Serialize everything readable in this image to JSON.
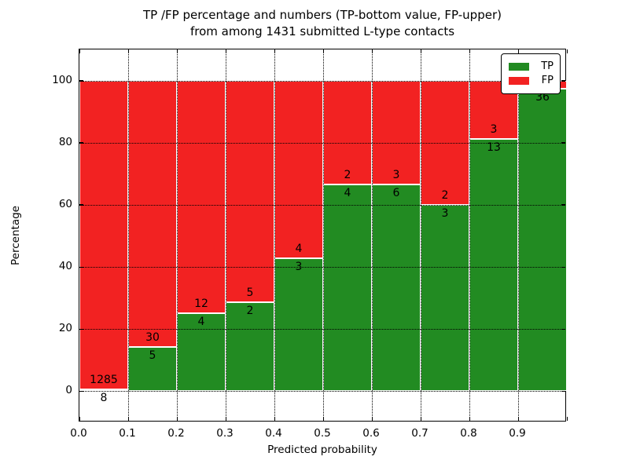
{
  "title": {
    "line1": "TP /FP percentage and numbers (TP-bottom value, FP-upper)",
    "line2": "from among 1431 submitted L-type contacts"
  },
  "chart_data": {
    "type": "bar",
    "stacked": true,
    "orientation": "vertical",
    "title": "TP /FP percentage and numbers (TP-bottom value, FP-upper) from among 1431 submitted L-type contacts",
    "xlabel": "Predicted probability",
    "ylabel": "Percentage",
    "xlim": [
      0.0,
      1.0
    ],
    "ylim": [
      -10,
      110
    ],
    "bin_width": 0.1,
    "grid": "dotted",
    "xtick_labels": [
      "0.0",
      "0.1",
      "0.2",
      "0.3",
      "0.4",
      "0.5",
      "0.6",
      "0.7",
      "0.8",
      "0.9"
    ],
    "ytick_values": [
      0,
      20,
      40,
      60,
      80,
      100
    ],
    "unit": "percent of bin stacked to 100",
    "series": [
      {
        "name": "TP",
        "color": "#228b22",
        "values": [
          8,
          5,
          4,
          2,
          3,
          4,
          6,
          3,
          13,
          36
        ]
      },
      {
        "name": "FP",
        "color": "#f22222",
        "values": [
          1285,
          30,
          12,
          5,
          4,
          2,
          3,
          2,
          3,
          1
        ]
      }
    ],
    "bars": [
      {
        "bin": "0.0-0.1",
        "tp": 8,
        "fp": 1285,
        "tp_label": "8",
        "fp_label": "1285"
      },
      {
        "bin": "0.1-0.2",
        "tp": 5,
        "fp": 30,
        "tp_label": "5",
        "fp_label": "30"
      },
      {
        "bin": "0.2-0.3",
        "tp": 4,
        "fp": 12,
        "tp_label": "4",
        "fp_label": "12"
      },
      {
        "bin": "0.3-0.4",
        "tp": 2,
        "fp": 5,
        "tp_label": "2",
        "fp_label": "5"
      },
      {
        "bin": "0.4-0.5",
        "tp": 3,
        "fp": 4,
        "tp_label": "3",
        "fp_label": "4"
      },
      {
        "bin": "0.5-0.6",
        "tp": 4,
        "fp": 2,
        "tp_label": "4",
        "fp_label": "2"
      },
      {
        "bin": "0.6-0.7",
        "tp": 6,
        "fp": 3,
        "tp_label": "6",
        "fp_label": "3"
      },
      {
        "bin": "0.7-0.8",
        "tp": 3,
        "fp": 2,
        "tp_label": "3",
        "fp_label": "2"
      },
      {
        "bin": "0.8-0.9",
        "tp": 13,
        "fp": 3,
        "tp_label": "13",
        "fp_label": "3"
      },
      {
        "bin": "0.9-1.0",
        "tp": 36,
        "fp": 1,
        "tp_label": "36",
        "fp_label": ""
      }
    ],
    "legend": {
      "position": "upper right",
      "entries": [
        {
          "label": "TP",
          "color": "#228b22"
        },
        {
          "label": "FP",
          "color": "#f22222"
        }
      ]
    }
  }
}
